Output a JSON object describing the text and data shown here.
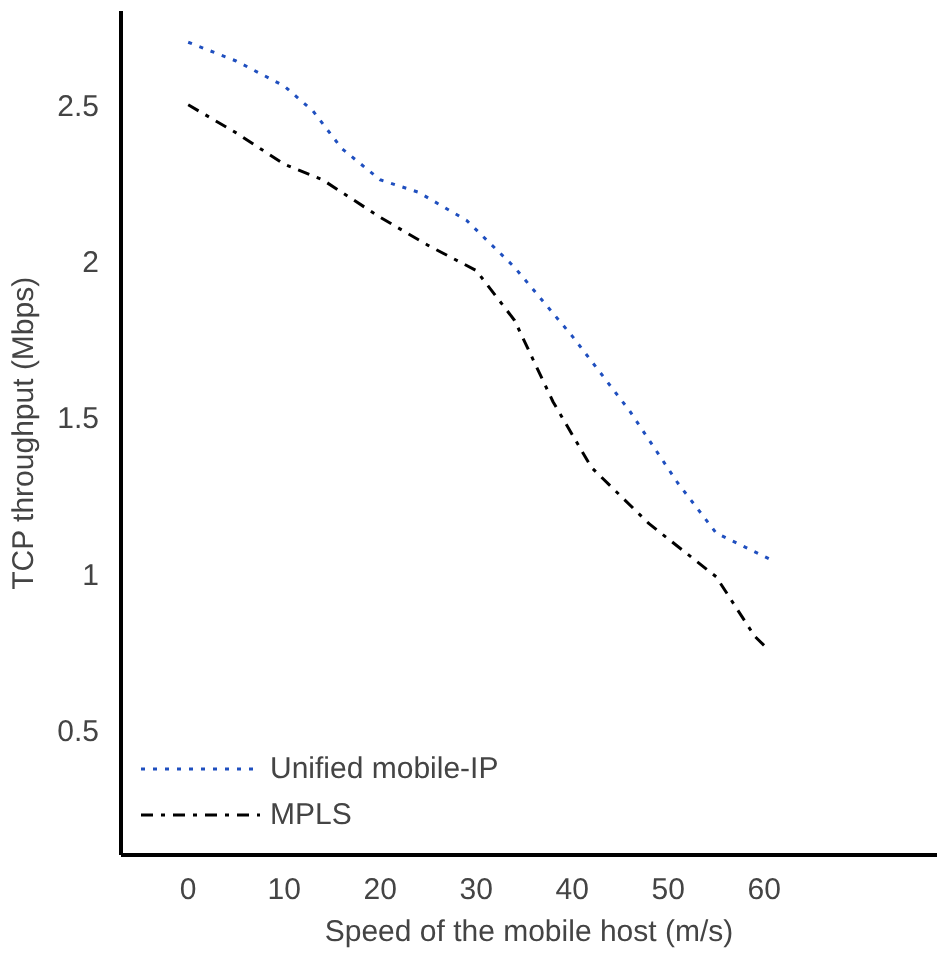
{
  "chart_data": {
    "type": "line",
    "xlabel": "Speed of the mobile host (m/s)",
    "ylabel": "TCP throughput (Mbps)",
    "xlim": [
      -7,
      78
    ],
    "ylim": [
      0.1,
      2.8
    ],
    "xticks": [
      0,
      10,
      20,
      30,
      40,
      50,
      60
    ],
    "yticks": [
      0.5,
      1,
      1.5,
      2,
      2.5
    ],
    "grid": false,
    "legend": "bottom left",
    "marker": "none",
    "series": [
      {
        "name": "Unified mobile-IP",
        "color": "#1f4fbf",
        "line_style": "dotted",
        "x": [
          0,
          5,
          10,
          13,
          16,
          20,
          24,
          29,
          34,
          40,
          46,
          51,
          55,
          61
        ],
        "values": [
          2.7,
          2.64,
          2.56,
          2.48,
          2.36,
          2.26,
          2.22,
          2.13,
          1.98,
          1.76,
          1.52,
          1.29,
          1.13,
          1.04
        ]
      },
      {
        "name": "MPLS",
        "color": "#000000",
        "line_style": "dashdot",
        "x": [
          0,
          5,
          10,
          14,
          20,
          25,
          30,
          34,
          38,
          42,
          48,
          55,
          59,
          60
        ],
        "values": [
          2.5,
          2.41,
          2.31,
          2.26,
          2.14,
          2.05,
          1.97,
          1.81,
          1.55,
          1.34,
          1.16,
          0.99,
          0.8,
          0.77
        ]
      }
    ]
  }
}
